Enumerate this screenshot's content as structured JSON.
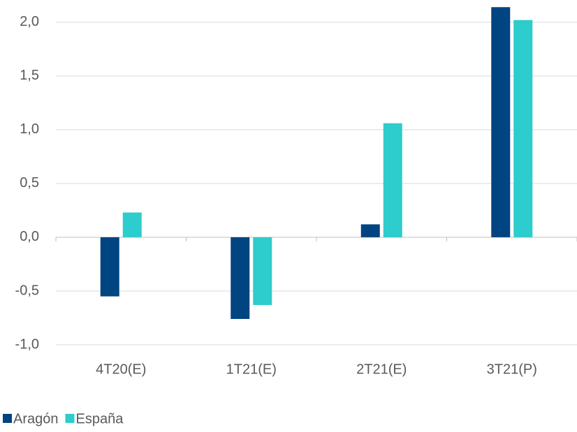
{
  "chart_data": {
    "type": "bar",
    "categories": [
      "4T20(E)",
      "1T21(E)",
      "2T21(E)",
      "3T21(P)"
    ],
    "series": [
      {
        "name": "Aragón",
        "color": "#004481",
        "values": [
          -0.55,
          -0.76,
          0.12,
          2.14
        ]
      },
      {
        "name": "España",
        "color": "#2dcccd",
        "values": [
          0.23,
          -0.63,
          1.06,
          2.02
        ]
      }
    ],
    "ylim": [
      -1,
      2.2
    ],
    "yticks": [
      {
        "value": -1,
        "label": "-1,0"
      },
      {
        "value": -0.5,
        "label": "-0,5"
      },
      {
        "value": 0,
        "label": "0,0"
      },
      {
        "value": 0.5,
        "label": "0,5"
      },
      {
        "value": 1,
        "label": "1,0"
      },
      {
        "value": 1.5,
        "label": "1,5"
      },
      {
        "value": 2,
        "label": "2,0"
      }
    ],
    "grid": true,
    "legend": "bottom-left"
  }
}
